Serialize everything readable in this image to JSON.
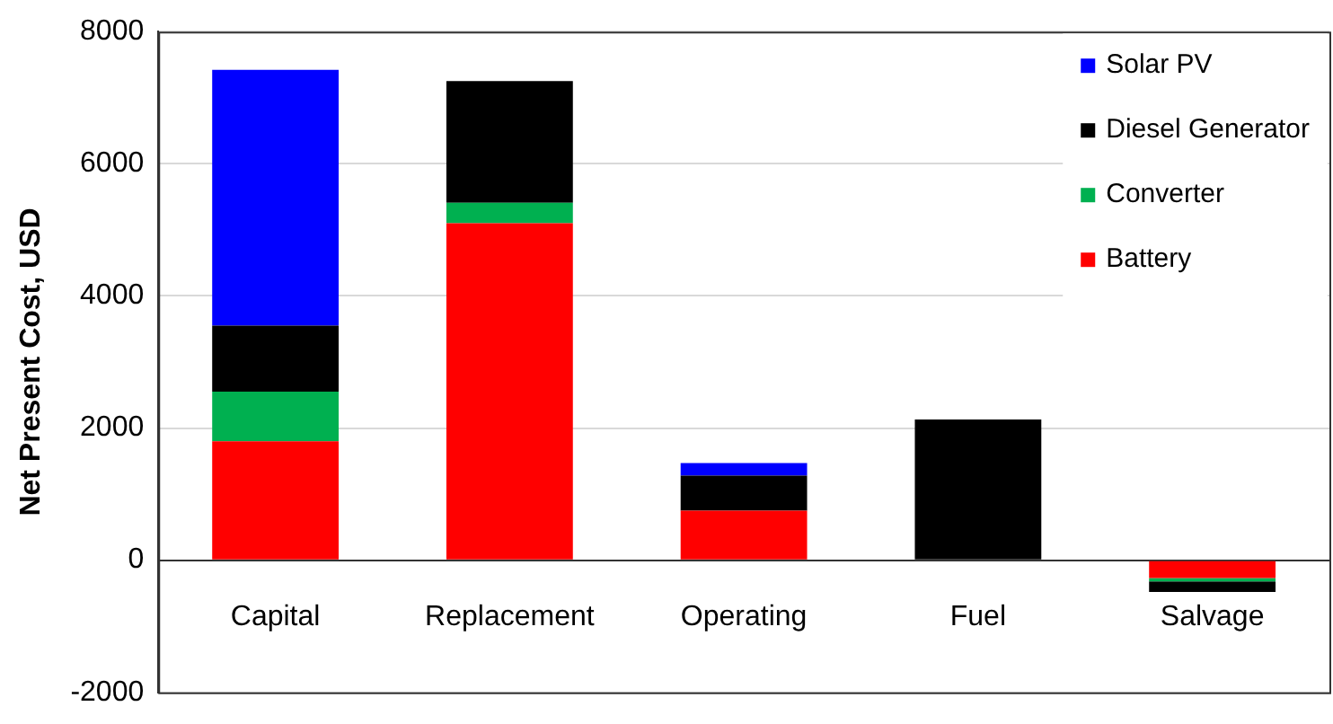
{
  "chart_data": {
    "type": "bar",
    "stacked": true,
    "ylabel": "Net Present Cost, USD",
    "categories": [
      "Capital",
      "Replacement",
      "Operating",
      "Fuel",
      "Salvage"
    ],
    "series": [
      {
        "name": "Battery",
        "color": "#ff0000",
        "values": [
          1800,
          5100,
          750,
          0,
          -270
        ]
      },
      {
        "name": "Converter",
        "color": "#00b050",
        "values": [
          750,
          310,
          0,
          0,
          -50
        ]
      },
      {
        "name": "Diesel Generator",
        "color": "#000000",
        "values": [
          1000,
          1840,
          530,
          2130,
          -160
        ]
      },
      {
        "name": "Solar PV",
        "color": "#0000ff",
        "values": [
          3870,
          0,
          190,
          0,
          0
        ]
      }
    ],
    "ylim": [
      -2000,
      8000
    ],
    "yticks": [
      -2000,
      0,
      2000,
      4000,
      6000,
      8000
    ],
    "grid": "y",
    "legend": "top right"
  }
}
